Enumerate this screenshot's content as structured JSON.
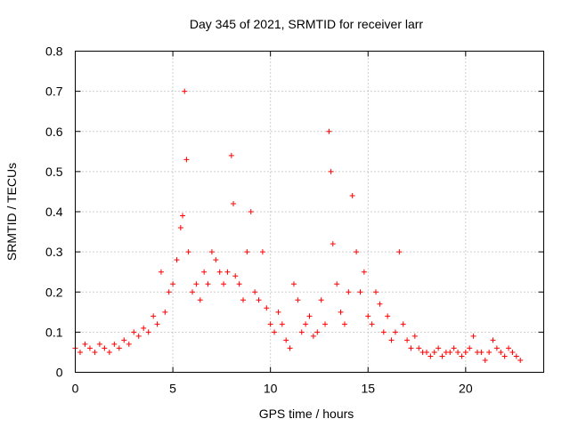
{
  "chart_data": {
    "type": "scatter",
    "title": "Day 345 of 2021, SRMTID for receiver larr",
    "xlabel": "GPS time / hours",
    "ylabel": "SRMTID / TECUs",
    "xlim": [
      0,
      24
    ],
    "ylim": [
      0,
      0.8
    ],
    "xticks": [
      0,
      5,
      10,
      15,
      20
    ],
    "xtick_labels": [
      "0",
      "5",
      "10",
      "15",
      "20"
    ],
    "yticks": [
      0,
      0.1,
      0.2,
      0.3,
      0.4,
      0.5,
      0.6,
      0.7,
      0.8
    ],
    "ytick_labels": [
      "0",
      "0.1",
      "0.2",
      "0.3",
      "0.4",
      "0.5",
      "0.6",
      "0.7",
      "0.8"
    ],
    "grid": true,
    "marker": "+",
    "marker_color": "#ff0000",
    "series": [
      {
        "name": "SRMTID",
        "x": [
          0.0,
          0.25,
          0.5,
          0.75,
          1.0,
          1.25,
          1.5,
          1.75,
          2.0,
          2.25,
          2.5,
          2.75,
          3.0,
          3.25,
          3.5,
          3.75,
          4.0,
          4.2,
          4.4,
          4.6,
          4.8,
          5.0,
          5.2,
          5.4,
          5.5,
          5.6,
          5.7,
          5.8,
          6.0,
          6.2,
          6.4,
          6.6,
          6.8,
          7.0,
          7.2,
          7.4,
          7.6,
          7.8,
          8.0,
          8.1,
          8.2,
          8.4,
          8.6,
          8.8,
          9.0,
          9.2,
          9.4,
          9.6,
          9.8,
          10.0,
          10.2,
          10.4,
          10.6,
          10.8,
          11.0,
          11.2,
          11.4,
          11.6,
          11.8,
          12.0,
          12.2,
          12.4,
          12.6,
          12.8,
          13.0,
          13.1,
          13.2,
          13.4,
          13.6,
          13.8,
          14.0,
          14.2,
          14.4,
          14.6,
          14.8,
          15.0,
          15.2,
          15.4,
          15.6,
          15.8,
          16.0,
          16.2,
          16.4,
          16.6,
          16.8,
          17.0,
          17.2,
          17.4,
          17.6,
          17.8,
          18.0,
          18.2,
          18.4,
          18.6,
          18.8,
          19.0,
          19.2,
          19.4,
          19.6,
          19.8,
          20.0,
          20.2,
          20.4,
          20.6,
          20.8,
          21.0,
          21.2,
          21.4,
          21.6,
          21.8,
          22.0,
          22.2,
          22.4,
          22.6,
          22.8
        ],
        "y": [
          0.06,
          0.05,
          0.07,
          0.06,
          0.05,
          0.07,
          0.06,
          0.05,
          0.07,
          0.06,
          0.08,
          0.07,
          0.1,
          0.09,
          0.11,
          0.1,
          0.14,
          0.12,
          0.25,
          0.15,
          0.2,
          0.22,
          0.28,
          0.36,
          0.39,
          0.7,
          0.53,
          0.3,
          0.2,
          0.22,
          0.18,
          0.25,
          0.22,
          0.3,
          0.28,
          0.25,
          0.22,
          0.25,
          0.54,
          0.42,
          0.24,
          0.22,
          0.18,
          0.3,
          0.4,
          0.2,
          0.18,
          0.3,
          0.16,
          0.12,
          0.1,
          0.15,
          0.12,
          0.08,
          0.06,
          0.22,
          0.18,
          0.1,
          0.12,
          0.14,
          0.09,
          0.1,
          0.18,
          0.12,
          0.6,
          0.5,
          0.32,
          0.22,
          0.15,
          0.12,
          0.2,
          0.44,
          0.3,
          0.2,
          0.25,
          0.14,
          0.12,
          0.2,
          0.17,
          0.1,
          0.14,
          0.08,
          0.1,
          0.3,
          0.12,
          0.08,
          0.06,
          0.09,
          0.06,
          0.05,
          0.05,
          0.04,
          0.05,
          0.06,
          0.04,
          0.05,
          0.05,
          0.06,
          0.05,
          0.04,
          0.05,
          0.06,
          0.09,
          0.05,
          0.05,
          0.03,
          0.05,
          0.08,
          0.06,
          0.05,
          0.04,
          0.06,
          0.05,
          0.04,
          0.03
        ]
      }
    ]
  }
}
